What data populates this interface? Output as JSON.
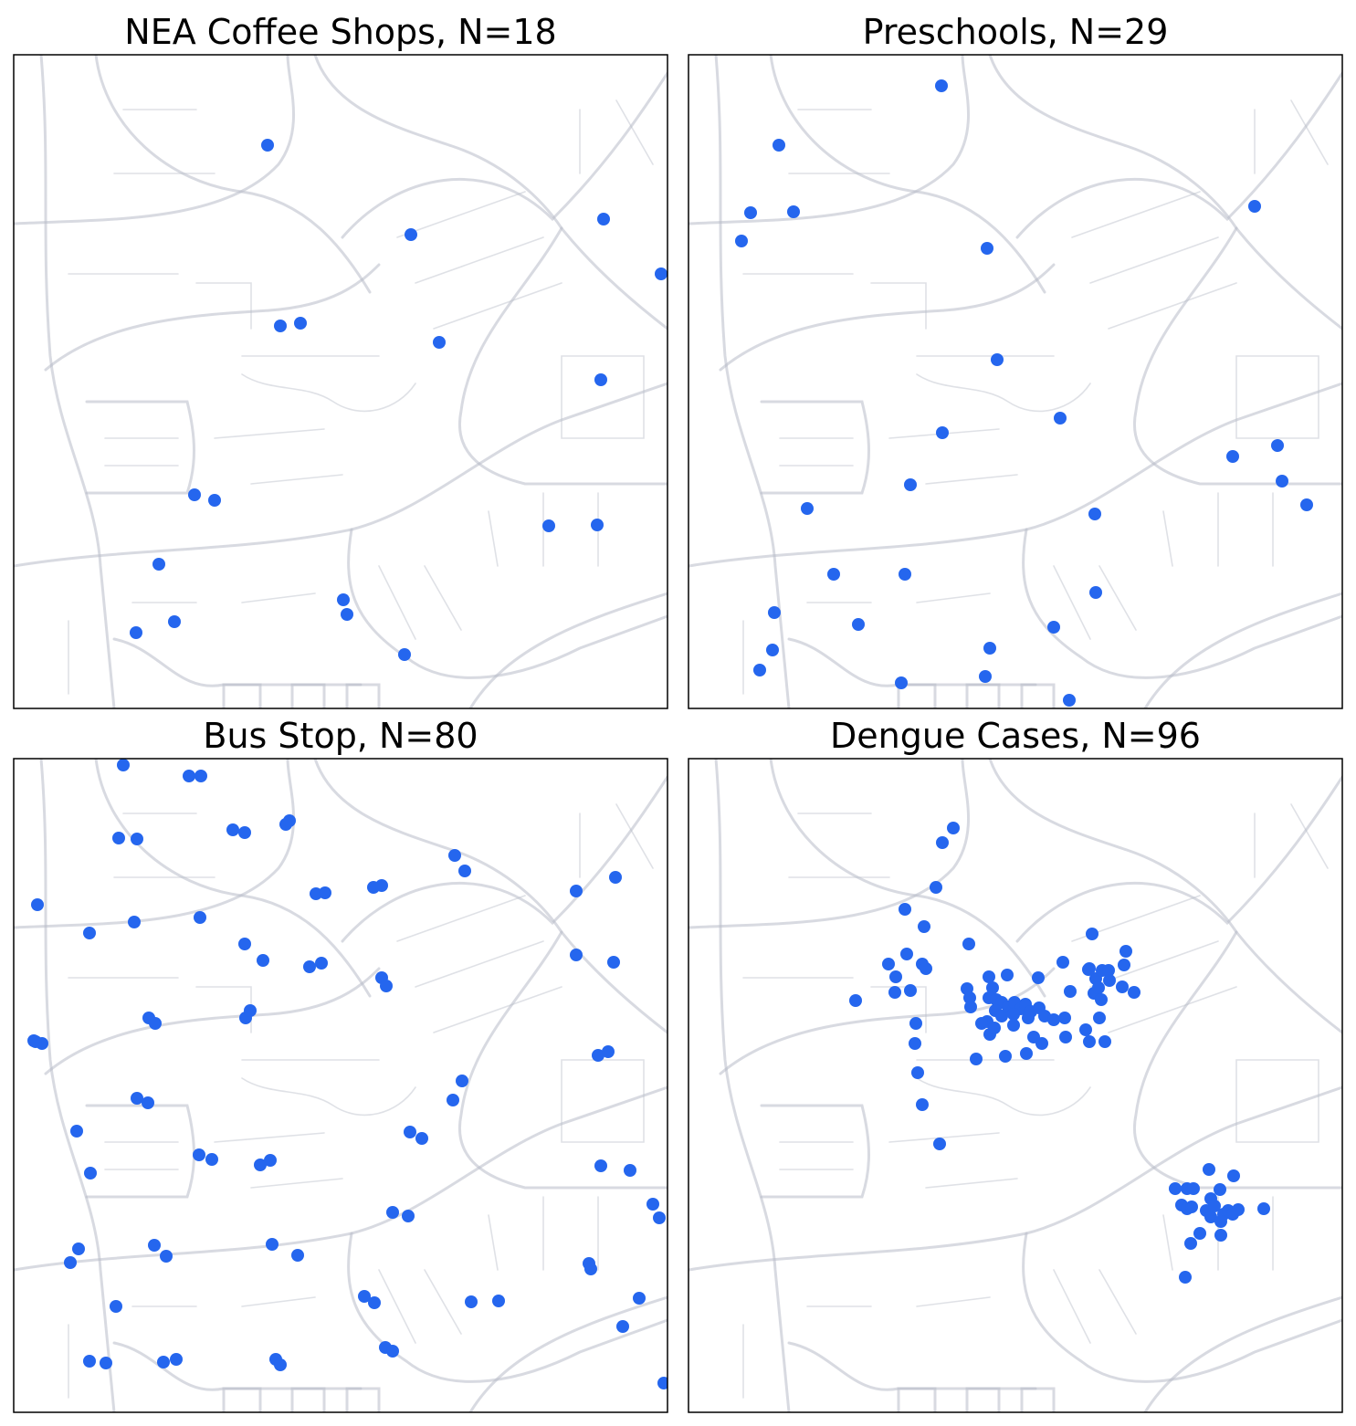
{
  "chart_data": [
    {
      "type": "scatter",
      "title": "NEA Coffee Shops, N=18",
      "color": "#2566ee",
      "xlim": [
        0,
        716
      ],
      "ylim": [
        0,
        716
      ],
      "x": [
        278,
        435,
        646,
        709,
        292,
        314,
        466,
        643,
        198,
        220,
        586,
        639,
        159,
        361,
        365,
        176,
        134,
        428
      ],
      "values": [
        617,
        519,
        536,
        476,
        419,
        422,
        401,
        360,
        234,
        228,
        200,
        201,
        158,
        119,
        103,
        95,
        83,
        59
      ]
    },
    {
      "type": "scatter",
      "title": "Preschools, N=29",
      "color": "#2566ee",
      "xlim": [
        0,
        716
      ],
      "ylim": [
        0,
        716
      ],
      "x": [
        277,
        99,
        68,
        115,
        58,
        620,
        327,
        338,
        407,
        278,
        596,
        645,
        650,
        677,
        243,
        130,
        445,
        159,
        237,
        446,
        94,
        186,
        400,
        92,
        330,
        78,
        233,
        325,
        417
      ],
      "values": [
        682,
        617,
        543,
        544,
        512,
        550,
        504,
        382,
        318,
        302,
        276,
        288,
        249,
        223,
        245,
        219,
        213,
        147,
        147,
        127,
        105,
        92,
        89,
        64,
        66,
        42,
        28,
        35,
        9
      ]
    },
    {
      "type": "scatter",
      "title": "Bus Stop, N=80",
      "color": "#2566ee",
      "xlim": [
        0,
        716
      ],
      "ylim": [
        0,
        716
      ],
      "x": [
        120,
        192,
        205,
        115,
        135,
        240,
        253,
        298,
        302,
        26,
        83,
        132,
        204,
        331,
        341,
        394,
        403,
        483,
        494,
        616,
        659,
        253,
        273,
        324,
        337,
        616,
        657,
        403,
        408,
        148,
        155,
        254,
        259,
        22,
        31,
        640,
        651,
        491,
        481,
        135,
        147,
        69,
        434,
        447,
        84,
        203,
        217,
        270,
        281,
        643,
        675,
        700,
        707,
        415,
        432,
        71,
        62,
        154,
        167,
        283,
        311,
        630,
        632,
        384,
        395,
        112,
        501,
        531,
        685,
        667,
        407,
        415,
        83,
        101,
        164,
        178,
        287,
        292,
        712,
        24
      ],
      "values": [
        709,
        697,
        697,
        629,
        628,
        638,
        635,
        644,
        648,
        556,
        525,
        537,
        542,
        568,
        569,
        575,
        577,
        610,
        593,
        571,
        586,
        513,
        495,
        488,
        492,
        501,
        493,
        476,
        467,
        432,
        426,
        432,
        440,
        407,
        404,
        391,
        395,
        363,
        342,
        344,
        339,
        308,
        307,
        300,
        262,
        282,
        277,
        271,
        276,
        270,
        265,
        228,
        213,
        219,
        215,
        179,
        164,
        183,
        171,
        184,
        172,
        163,
        157,
        127,
        120,
        116,
        121,
        122,
        125,
        94,
        71,
        67,
        56,
        54,
        55,
        58,
        58,
        52,
        32,
        406
      ]
    },
    {
      "type": "scatter",
      "title": "Dengue Cases, N=96",
      "color": "#2566ee",
      "xlim": [
        0,
        716
      ],
      "ylim": [
        0,
        716
      ],
      "x": [
        290,
        278,
        271,
        237,
        258,
        307,
        219,
        239,
        256,
        260,
        227,
        226,
        243,
        183,
        305,
        308,
        248,
        251,
        256,
        275,
        249,
        315,
        347,
        370,
        387,
        410,
        442,
        479,
        477,
        488,
        475,
        329,
        349,
        383,
        333,
        329,
        337,
        343,
        336,
        343,
        350,
        357,
        364,
        369,
        375,
        384,
        390,
        400,
        412,
        418,
        439,
        446,
        453,
        460,
        444,
        449,
        461,
        452,
        438,
        435,
        450,
        456,
        439,
        413,
        378,
        356,
        330,
        327,
        335,
        356,
        372,
        309,
        321,
        570,
        597,
        533,
        546,
        553,
        582,
        572,
        540,
        546,
        551,
        567,
        576,
        586,
        591,
        602,
        630,
        572,
        583,
        596,
        560,
        583,
        550,
        544
      ],
      "values": [
        640,
        624,
        575,
        551,
        532,
        513,
        491,
        502,
        491,
        486,
        477,
        460,
        462,
        451,
        464,
        454,
        404,
        372,
        337,
        294,
        426,
        387,
        390,
        393,
        404,
        493,
        524,
        505,
        490,
        460,
        466,
        477,
        479,
        476,
        465,
        454,
        452,
        449,
        440,
        434,
        444,
        449,
        442,
        447,
        439,
        443,
        434,
        430,
        432,
        461,
        486,
        475,
        484,
        484,
        459,
        465,
        473,
        452,
        485,
        419,
        432,
        406,
        406,
        411,
        411,
        424,
        414,
        428,
        421,
        436,
        432,
        444,
        426,
        266,
        259,
        245,
        245,
        245,
        244,
        234,
        227,
        223,
        225,
        221,
        226,
        217,
        221,
        222,
        223,
        214,
        209,
        217,
        196,
        194,
        185,
        148
      ]
    }
  ]
}
